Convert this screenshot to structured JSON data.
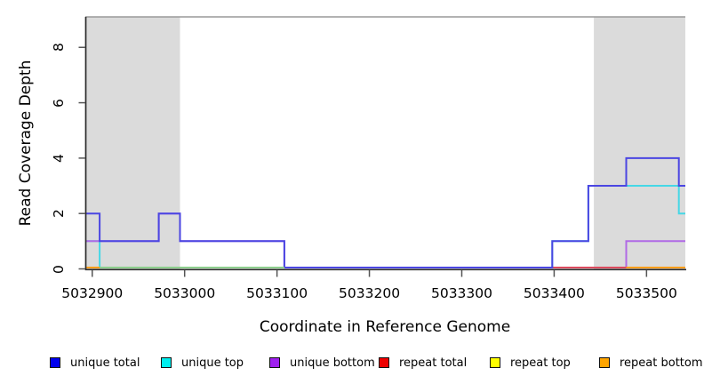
{
  "chart_data": {
    "type": "line",
    "subtype": "step-coverage",
    "title": "",
    "xlabel": "Coordinate in Reference Genome",
    "ylabel": "Read Coverage Depth",
    "xlim": [
      5032893,
      5033542
    ],
    "ylim": [
      0,
      9.1
    ],
    "x_ticks": [
      5032900,
      5033000,
      5033100,
      5033200,
      5033300,
      5033400,
      5033500
    ],
    "x_tick_labels": [
      "5032900",
      "5033000",
      "5033100",
      "5033200",
      "5033300",
      "5033400",
      "5033500"
    ],
    "y_ticks": [
      0,
      2,
      4,
      6,
      8
    ],
    "y_tick_labels": [
      "0",
      "2",
      "4",
      "6",
      "8"
    ],
    "grid": false,
    "legend_position": "bottom",
    "background_color": "#FFFFFF",
    "shade_color": "#DBDBDB",
    "shaded_regions": [
      {
        "from": 5032893,
        "to": 5032995
      },
      {
        "from": 5033443,
        "to": 5033542
      }
    ],
    "series": [
      {
        "name": "unique total",
        "legend_color": "#0000EE",
        "line_color": "#4B46E2",
        "points": [
          [
            5032893,
            2
          ],
          [
            5032908,
            1
          ],
          [
            5032972,
            2
          ],
          [
            5032995,
            1
          ],
          [
            5033108,
            0
          ],
          [
            5033398,
            1
          ],
          [
            5033437,
            3
          ],
          [
            5033478,
            4
          ],
          [
            5033535,
            3
          ]
        ]
      },
      {
        "name": "unique top",
        "legend_color": "#00EEEE",
        "line_color": "#45D7E6",
        "points": [
          [
            5032893,
            1
          ],
          [
            5032908,
            0
          ],
          [
            5033398,
            1
          ],
          [
            5033437,
            3
          ],
          [
            5033535,
            2
          ]
        ]
      },
      {
        "name": "unique bottom",
        "legend_color": "#A020F0",
        "line_color": "#B06AE6",
        "points": [
          [
            5032893,
            1
          ],
          [
            5032972,
            2
          ],
          [
            5032995,
            1
          ],
          [
            5033108,
            0
          ],
          [
            5033478,
            1
          ]
        ]
      },
      {
        "name": "repeat total",
        "legend_color": "#EE0000",
        "line_color": "#DC4A5E",
        "points": [
          [
            5032893,
            0
          ]
        ]
      },
      {
        "name": "repeat top",
        "legend_color": "#FFFF00",
        "line_color": "#FFFF00",
        "points": [
          [
            5032893,
            0
          ]
        ]
      },
      {
        "name": "repeat bottom",
        "legend_color": "#FFA500",
        "line_color": "#FF9E1A",
        "points": [
          [
            5032893,
            0
          ]
        ],
        "visible_zero_segments": [
          [
            5032893,
            5032908
          ],
          [
            5033478,
            5033542
          ]
        ]
      }
    ],
    "draw_order": [
      "repeat top",
      "unique top",
      "unique bottom",
      "repeat total",
      "unique total",
      "repeat bottom"
    ],
    "overlap_artifacts": [
      {
        "color": "#8CCE8C",
        "value": 0,
        "from": 5032908,
        "to": 5033108
      }
    ]
  },
  "legend": {
    "items": [
      {
        "label": "unique total",
        "color": "#0000EE"
      },
      {
        "label": "unique top",
        "color": "#00EEEE"
      },
      {
        "label": "unique bottom",
        "color": "#A020F0"
      },
      {
        "label": "repeat total",
        "color": "#EE0000"
      },
      {
        "label": "repeat top",
        "color": "#FFFF00"
      },
      {
        "label": "repeat bottom",
        "color": "#FFA500"
      }
    ]
  }
}
